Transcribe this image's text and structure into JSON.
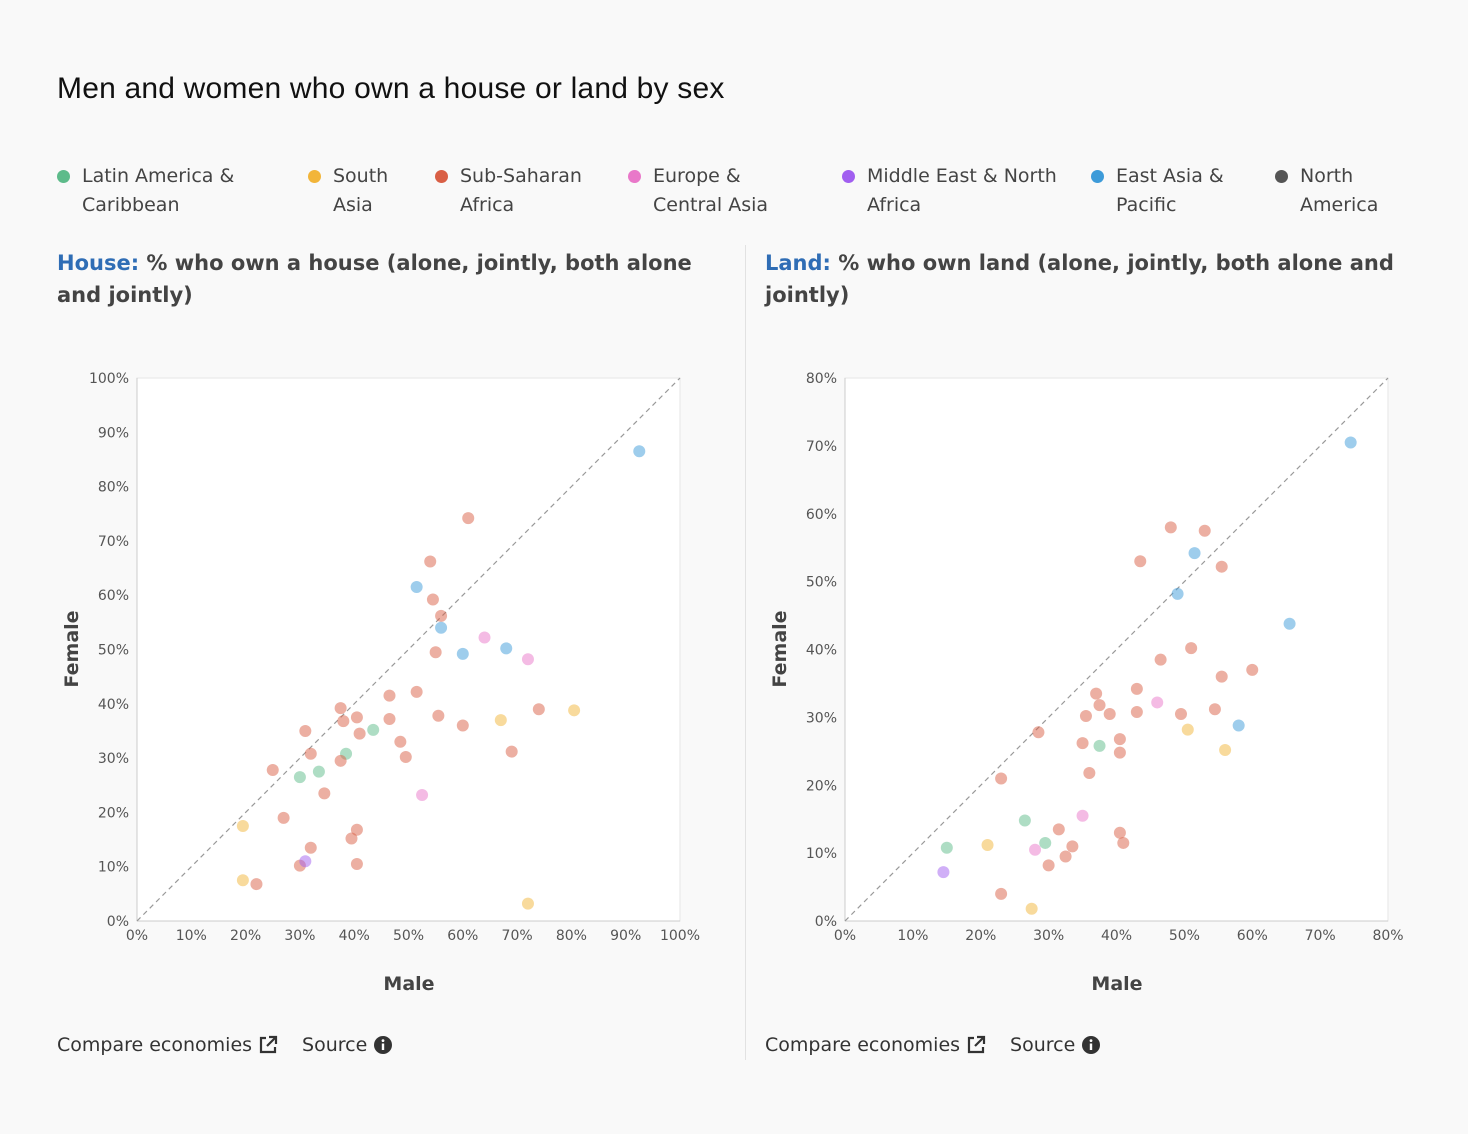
{
  "title": "Men and women who own a house or land by sex",
  "legend": [
    {
      "label": "Latin America &\nCaribbean",
      "color": "#5dbb8a"
    },
    {
      "label": "South\nAsia",
      "color": "#f2b53a"
    },
    {
      "label": "Sub-Saharan\nAfrica",
      "color": "#d95f45"
    },
    {
      "label": "Europe &\nCentral Asia",
      "color": "#e978c9"
    },
    {
      "label": "Middle East & North\nAfrica",
      "color": "#a15ff0"
    },
    {
      "label": "East Asia &\nPacific",
      "color": "#3d9bd9"
    },
    {
      "label": "North\nAmerica",
      "color": "#555555"
    }
  ],
  "panels": [
    {
      "key": "House:",
      "title": " % who own a house (alone, jointly, both alone and jointly)",
      "xlabel": "Male",
      "ylabel": "Female",
      "compare_label": "Compare economies",
      "source_label": "Source"
    },
    {
      "key": "Land:",
      "title": " % who own land (alone, jointly, both alone and jointly)",
      "xlabel": "Male",
      "ylabel": "Female",
      "compare_label": "Compare economies",
      "source_label": "Source"
    }
  ],
  "chart_data": [
    {
      "type": "scatter",
      "title": "House: % who own a house (alone, jointly, both alone and jointly)",
      "xlabel": "Male",
      "ylabel": "Female",
      "xlim": [
        0,
        100
      ],
      "ylim": [
        0,
        100
      ],
      "xticks": [
        "0%",
        "10%",
        "20%",
        "30%",
        "40%",
        "50%",
        "60%",
        "70%",
        "80%",
        "90%",
        "100%"
      ],
      "yticks": [
        "0%",
        "10%",
        "20%",
        "30%",
        "40%",
        "50%",
        "60%",
        "70%",
        "80%",
        "90%",
        "100%"
      ],
      "reference_line": "y = x",
      "series": [
        {
          "name": "Latin America & Caribbean",
          "points": [
            [
              30,
              26.5
            ],
            [
              33.5,
              27.5
            ],
            [
              38.5,
              30.8
            ],
            [
              43.5,
              35.2
            ]
          ]
        },
        {
          "name": "South Asia",
          "points": [
            [
              19.5,
              17.5
            ],
            [
              19.5,
              7.5
            ],
            [
              67,
              37
            ],
            [
              80.5,
              38.8
            ],
            [
              72,
              3.2
            ]
          ]
        },
        {
          "name": "Sub-Saharan Africa",
          "points": [
            [
              25,
              27.8
            ],
            [
              27,
              19
            ],
            [
              31,
              35
            ],
            [
              32,
              30.8
            ],
            [
              32,
              13.5
            ],
            [
              30,
              10.2
            ],
            [
              34.5,
              23.5
            ],
            [
              37.5,
              39.2
            ],
            [
              37.5,
              29.5
            ],
            [
              38,
              36.8
            ],
            [
              39.5,
              15.2
            ],
            [
              40.5,
              37.5
            ],
            [
              41,
              34.5
            ],
            [
              40.5,
              16.8
            ],
            [
              40.5,
              10.5
            ],
            [
              46.5,
              41.5
            ],
            [
              46.5,
              37.2
            ],
            [
              48.5,
              33
            ],
            [
              49.5,
              30.2
            ],
            [
              51.5,
              42.2
            ],
            [
              54,
              66.2
            ],
            [
              54.5,
              59.2
            ],
            [
              55,
              49.5
            ],
            [
              56,
              56.2
            ],
            [
              55.5,
              37.8
            ],
            [
              60,
              36
            ],
            [
              61,
              74.2
            ],
            [
              69,
              31.2
            ],
            [
              74,
              39
            ],
            [
              22,
              6.8
            ]
          ]
        },
        {
          "name": "Europe & Central Asia",
          "points": [
            [
              64,
              52.2
            ],
            [
              72,
              48.2
            ],
            [
              52.5,
              23.2
            ]
          ]
        },
        {
          "name": "Middle East & North Africa",
          "points": [
            [
              31,
              11
            ]
          ]
        },
        {
          "name": "East Asia & Pacific",
          "points": [
            [
              51.5,
              61.5
            ],
            [
              56,
              54
            ],
            [
              60,
              49.2
            ],
            [
              68,
              50.2
            ],
            [
              92.5,
              86.5
            ]
          ]
        },
        {
          "name": "North America",
          "points": []
        }
      ]
    },
    {
      "type": "scatter",
      "title": "Land: % who own land (alone, jointly, both alone and jointly)",
      "xlabel": "Male",
      "ylabel": "Female",
      "xlim": [
        0,
        80
      ],
      "ylim": [
        0,
        80
      ],
      "xticks": [
        "0%",
        "10%",
        "20%",
        "30%",
        "40%",
        "50%",
        "60%",
        "70%",
        "80%"
      ],
      "yticks": [
        "0%",
        "10%",
        "20%",
        "30%",
        "40%",
        "50%",
        "60%",
        "70%",
        "80%"
      ],
      "reference_line": "y = x",
      "series": [
        {
          "name": "Latin America & Caribbean",
          "points": [
            [
              15,
              10.8
            ],
            [
              26.5,
              14.8
            ],
            [
              29.5,
              11.5
            ],
            [
              37.5,
              25.8
            ]
          ]
        },
        {
          "name": "South Asia",
          "points": [
            [
              21,
              11.2
            ],
            [
              27.5,
              1.8
            ],
            [
              50.5,
              28.2
            ],
            [
              56,
              25.2
            ]
          ]
        },
        {
          "name": "Sub-Saharan Africa",
          "points": [
            [
              23,
              21
            ],
            [
              23,
              4
            ],
            [
              28.5,
              27.8
            ],
            [
              30,
              8.2
            ],
            [
              31.5,
              13.5
            ],
            [
              32.5,
              9.5
            ],
            [
              33.5,
              11
            ],
            [
              35,
              26.2
            ],
            [
              35.5,
              30.2
            ],
            [
              36,
              21.8
            ],
            [
              37,
              33.5
            ],
            [
              37.5,
              31.8
            ],
            [
              39,
              30.5
            ],
            [
              40.5,
              26.8
            ],
            [
              40.5,
              24.8
            ],
            [
              40.5,
              13
            ],
            [
              41,
              11.5
            ],
            [
              43,
              34.2
            ],
            [
              43,
              30.8
            ],
            [
              43.5,
              53
            ],
            [
              46.5,
              38.5
            ],
            [
              48,
              58
            ],
            [
              49.5,
              30.5
            ],
            [
              51,
              40.2
            ],
            [
              53,
              57.5
            ],
            [
              54.5,
              31.2
            ],
            [
              55.5,
              36
            ],
            [
              55.5,
              52.2
            ],
            [
              60,
              37
            ]
          ]
        },
        {
          "name": "Europe & Central Asia",
          "points": [
            [
              46,
              32.2
            ],
            [
              35,
              15.5
            ],
            [
              28,
              10.5
            ]
          ]
        },
        {
          "name": "Middle East & North Africa",
          "points": [
            [
              14.5,
              7.2
            ]
          ]
        },
        {
          "name": "East Asia & Pacific",
          "points": [
            [
              49,
              48.2
            ],
            [
              51.5,
              54.2
            ],
            [
              58,
              28.8
            ],
            [
              65.5,
              43.8
            ],
            [
              74.5,
              70.5
            ]
          ]
        },
        {
          "name": "North America",
          "points": []
        }
      ]
    }
  ]
}
